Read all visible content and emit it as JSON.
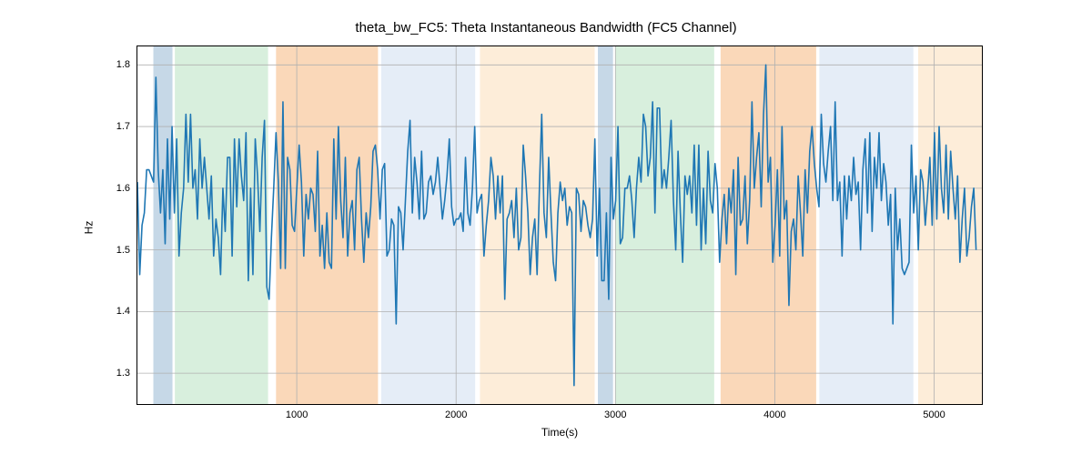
{
  "chart": {
    "type": "line",
    "title": "theta_bw_FC5: Theta Instantaneous Bandwidth (FC5 Channel)",
    "title_fontsize": 15,
    "xlabel": "Time(s)",
    "ylabel": "Hz",
    "label_fontsize": 12,
    "tick_fontsize": 11,
    "background_color": "#ffffff",
    "grid_color": "#b0b0b0",
    "line_color": "#1f77b4",
    "line_width": 1.6,
    "xlim": [
      0,
      5300
    ],
    "ylim": [
      1.25,
      1.83
    ],
    "xticks": [
      1000,
      2000,
      3000,
      4000,
      5000
    ],
    "yticks": [
      1.3,
      1.4,
      1.5,
      1.6,
      1.7,
      1.8
    ],
    "x_step": 14.5,
    "regions": [
      {
        "start": 100,
        "end": 220,
        "color": "#5b8fb9",
        "opacity": 0.35
      },
      {
        "start": 235,
        "end": 820,
        "color": "#8fd19e",
        "opacity": 0.35
      },
      {
        "start": 870,
        "end": 1510,
        "color": "#f5a963",
        "opacity": 0.45
      },
      {
        "start": 1530,
        "end": 2120,
        "color": "#c5d8ee",
        "opacity": 0.45
      },
      {
        "start": 2150,
        "end": 2870,
        "color": "#fbd6ab",
        "opacity": 0.45
      },
      {
        "start": 2890,
        "end": 2985,
        "color": "#5b8fb9",
        "opacity": 0.35
      },
      {
        "start": 3000,
        "end": 3620,
        "color": "#8fd19e",
        "opacity": 0.35
      },
      {
        "start": 3660,
        "end": 4260,
        "color": "#f5a963",
        "opacity": 0.45
      },
      {
        "start": 4280,
        "end": 4870,
        "color": "#c5d8ee",
        "opacity": 0.45
      },
      {
        "start": 4900,
        "end": 5300,
        "color": "#fbd6ab",
        "opacity": 0.45
      }
    ],
    "y": [
      1.61,
      1.46,
      1.54,
      1.56,
      1.63,
      1.63,
      1.62,
      1.61,
      1.78,
      1.63,
      1.56,
      1.63,
      1.51,
      1.68,
      1.55,
      1.7,
      1.56,
      1.68,
      1.49,
      1.56,
      1.6,
      1.72,
      1.61,
      1.72,
      1.6,
      1.63,
      1.55,
      1.68,
      1.6,
      1.65,
      1.6,
      1.55,
      1.62,
      1.49,
      1.55,
      1.52,
      1.46,
      1.6,
      1.53,
      1.65,
      1.65,
      1.49,
      1.68,
      1.57,
      1.68,
      1.62,
      1.58,
      1.69,
      1.45,
      1.6,
      1.46,
      1.68,
      1.62,
      1.53,
      1.65,
      1.71,
      1.44,
      1.42,
      1.52,
      1.6,
      1.69,
      1.61,
      1.47,
      1.74,
      1.47,
      1.65,
      1.63,
      1.54,
      1.53,
      1.6,
      1.67,
      1.61,
      1.49,
      1.59,
      1.55,
      1.6,
      1.59,
      1.53,
      1.66,
      1.49,
      1.54,
      1.47,
      1.56,
      1.48,
      1.47,
      1.68,
      1.55,
      1.7,
      1.58,
      1.52,
      1.65,
      1.49,
      1.56,
      1.58,
      1.5,
      1.63,
      1.65,
      1.55,
      1.48,
      1.56,
      1.52,
      1.57,
      1.66,
      1.67,
      1.63,
      1.55,
      1.63,
      1.64,
      1.49,
      1.5,
      1.55,
      1.54,
      1.38,
      1.57,
      1.56,
      1.5,
      1.58,
      1.66,
      1.71,
      1.56,
      1.65,
      1.61,
      1.55,
      1.66,
      1.55,
      1.56,
      1.61,
      1.62,
      1.59,
      1.61,
      1.65,
      1.6,
      1.55,
      1.58,
      1.62,
      1.68,
      1.57,
      1.54,
      1.55,
      1.55,
      1.56,
      1.53,
      1.65,
      1.56,
      1.54,
      1.6,
      1.7,
      1.56,
      1.58,
      1.59,
      1.49,
      1.54,
      1.58,
      1.65,
      1.62,
      1.55,
      1.62,
      1.56,
      1.62,
      1.42,
      1.55,
      1.56,
      1.58,
      1.52,
      1.6,
      1.5,
      1.52,
      1.67,
      1.62,
      1.56,
      1.46,
      1.52,
      1.55,
      1.46,
      1.6,
      1.72,
      1.56,
      1.52,
      1.65,
      1.56,
      1.48,
      1.45,
      1.56,
      1.61,
      1.58,
      1.6,
      1.54,
      1.57,
      1.56,
      1.28,
      1.6,
      1.59,
      1.53,
      1.58,
      1.57,
      1.54,
      1.52,
      1.55,
      1.68,
      1.49,
      1.6,
      1.45,
      1.45,
      1.56,
      1.42,
      1.65,
      1.55,
      1.58,
      1.7,
      1.51,
      1.52,
      1.6,
      1.6,
      1.62,
      1.58,
      1.52,
      1.6,
      1.65,
      1.61,
      1.72,
      1.7,
      1.62,
      1.65,
      1.74,
      1.56,
      1.73,
      1.73,
      1.6,
      1.63,
      1.6,
      1.65,
      1.71,
      1.58,
      1.5,
      1.66,
      1.56,
      1.48,
      1.62,
      1.59,
      1.62,
      1.56,
      1.67,
      1.54,
      1.67,
      1.5,
      1.6,
      1.51,
      1.66,
      1.58,
      1.56,
      1.64,
      1.6,
      1.48,
      1.55,
      1.59,
      1.51,
      1.6,
      1.56,
      1.63,
      1.46,
      1.65,
      1.54,
      1.55,
      1.62,
      1.51,
      1.58,
      1.74,
      1.6,
      1.65,
      1.69,
      1.57,
      1.72,
      1.8,
      1.61,
      1.65,
      1.48,
      1.54,
      1.63,
      1.49,
      1.7,
      1.55,
      1.58,
      1.41,
      1.53,
      1.55,
      1.5,
      1.62,
      1.56,
      1.49,
      1.63,
      1.56,
      1.66,
      1.7,
      1.64,
      1.6,
      1.57,
      1.72,
      1.64,
      1.61,
      1.66,
      1.7,
      1.58,
      1.74,
      1.58,
      1.61,
      1.49,
      1.62,
      1.55,
      1.62,
      1.58,
      1.65,
      1.59,
      1.61,
      1.5,
      1.63,
      1.68,
      1.56,
      1.69,
      1.53,
      1.65,
      1.6,
      1.69,
      1.58,
      1.64,
      1.61,
      1.54,
      1.59,
      1.38,
      1.6,
      1.5,
      1.55,
      1.47,
      1.46,
      1.47,
      1.48,
      1.67,
      1.56,
      1.62,
      1.5,
      1.63,
      1.61,
      1.54,
      1.59,
      1.65,
      1.54,
      1.69,
      1.55,
      1.7,
      1.6,
      1.56,
      1.67,
      1.55,
      1.66,
      1.6,
      1.55,
      1.62,
      1.48,
      1.55,
      1.6,
      1.49,
      1.52,
      1.57,
      1.6,
      1.5
    ]
  }
}
